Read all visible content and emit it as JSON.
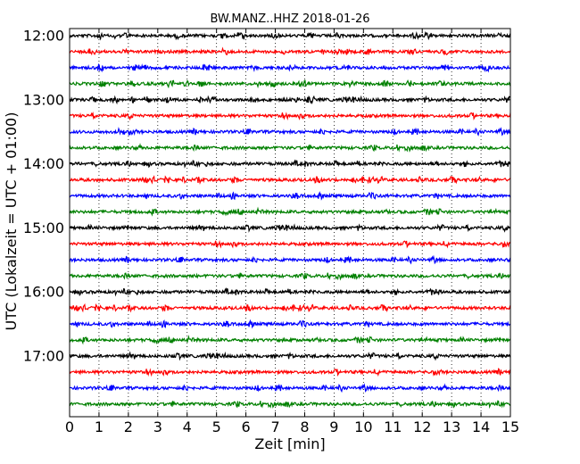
{
  "chart_data": {
    "type": "line",
    "title": "BW.MANZ..HHZ 2018-01-26",
    "xlabel": "Zeit  [min]",
    "ylabel": "UTC (Lokalzeit = UTC + 01:00)",
    "xlim": [
      0,
      15
    ],
    "x_ticks": [
      "0",
      "1",
      "2",
      "3",
      "4",
      "5",
      "6",
      "7",
      "8",
      "9",
      "10",
      "11",
      "12",
      "13",
      "14",
      "15"
    ],
    "y_ticks": [
      {
        "label": "12:00",
        "row": 0
      },
      {
        "label": "13:00",
        "row": 4
      },
      {
        "label": "14:00",
        "row": 8
      },
      {
        "label": "15:00",
        "row": 12
      },
      {
        "label": "16:00",
        "row": 16
      },
      {
        "label": "17:00",
        "row": 20
      }
    ],
    "trace_colors": [
      "#000000",
      "#ff0000",
      "#0000ff",
      "#008000"
    ],
    "traces": [
      {
        "start": "12:00"
      },
      {
        "start": "12:15"
      },
      {
        "start": "12:30"
      },
      {
        "start": "12:45"
      },
      {
        "start": "13:00"
      },
      {
        "start": "13:15"
      },
      {
        "start": "13:30"
      },
      {
        "start": "13:45"
      },
      {
        "start": "14:00"
      },
      {
        "start": "14:15"
      },
      {
        "start": "14:30"
      },
      {
        "start": "14:45"
      },
      {
        "start": "15:00"
      },
      {
        "start": "15:15"
      },
      {
        "start": "15:30"
      },
      {
        "start": "15:45"
      },
      {
        "start": "16:00"
      },
      {
        "start": "16:15"
      },
      {
        "start": "16:30"
      },
      {
        "start": "16:45"
      },
      {
        "start": "17:00"
      },
      {
        "start": "17:15"
      },
      {
        "start": "17:30"
      },
      {
        "start": "17:45"
      }
    ],
    "grid": {
      "x": true,
      "y": false
    }
  }
}
